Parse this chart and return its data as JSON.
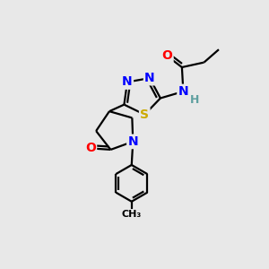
{
  "bg_color": "#e8e8e8",
  "atom_colors": {
    "C": "#000000",
    "N": "#0000ff",
    "O": "#ff0000",
    "S": "#ccaa00",
    "H": "#5fa0a0"
  },
  "bond_color": "#000000",
  "bond_width": 1.6,
  "font_size_atom": 10,
  "font_size_H": 9
}
